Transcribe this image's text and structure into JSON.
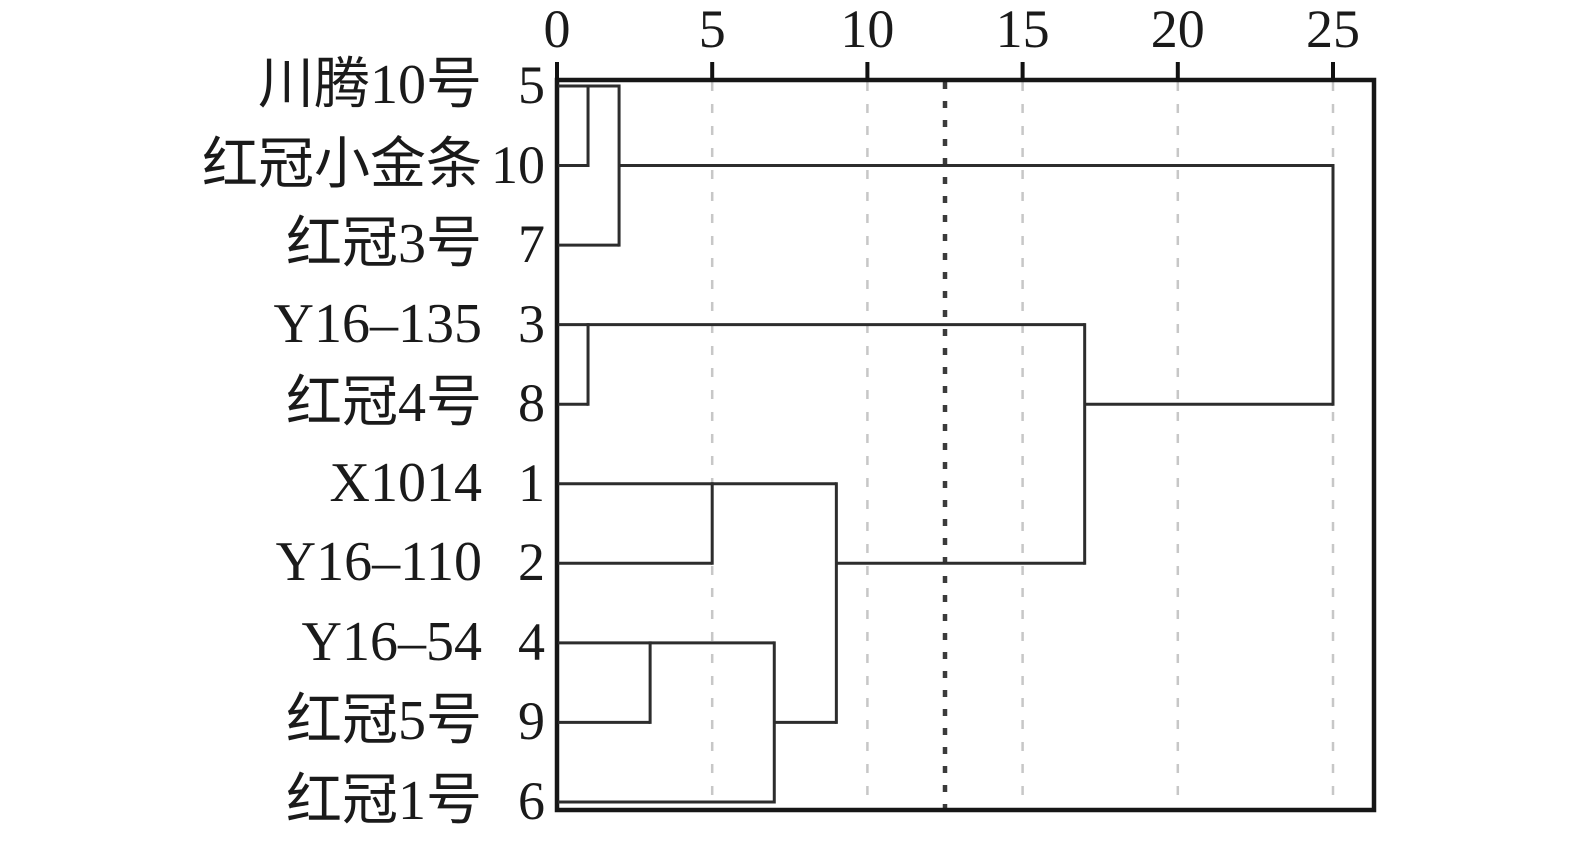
{
  "figure": {
    "kind": "hierarchical-cluster-dendrogram",
    "orientation": "left-to-right",
    "background": "#ffffff"
  },
  "axis": {
    "position": "top",
    "min": 0,
    "max": 25,
    "ticks": [
      "0",
      "5",
      "10",
      "15",
      "20",
      "25"
    ],
    "tick_values": [
      0,
      5,
      10,
      15,
      20,
      25
    ]
  },
  "leaves": [
    {
      "name": "川腾10号",
      "case": "5"
    },
    {
      "name": "红冠小金条",
      "case": "10"
    },
    {
      "name": "红冠3号",
      "case": "7"
    },
    {
      "name": "Y16–135",
      "case": "3"
    },
    {
      "name": "红冠4号",
      "case": "8"
    },
    {
      "name": "X1014",
      "case": "1"
    },
    {
      "name": "Y16–110",
      "case": "2"
    },
    {
      "name": "Y16–54",
      "case": "4"
    },
    {
      "name": "红冠5号",
      "case": "9"
    },
    {
      "name": "红冠1号",
      "case": "6"
    }
  ],
  "colors": {
    "link": "#2d2d2d",
    "border": "#161616",
    "gridline": "#c7c7c7",
    "cut_line": "#3b3b3b",
    "text": "#1a1a1a",
    "tick": "#111111"
  },
  "chart_data": {
    "type": "dendrogram",
    "title": "",
    "xlabel": "",
    "ylabel": "",
    "orientation": "left-to-right",
    "distance_axis": {
      "position": "top",
      "range": [
        0,
        25
      ],
      "ticks": [
        0,
        5,
        10,
        15,
        20,
        25
      ]
    },
    "gridlines": [
      5,
      10,
      15,
      20,
      25
    ],
    "gridline_style": "light-dashed",
    "cut_line": 12.5,
    "cut_line_style": "dark-dashed",
    "leaf_order_top_to_bottom": [
      {
        "label": "川腾10号",
        "case": 5
      },
      {
        "label": "红冠小金条",
        "case": 10
      },
      {
        "label": "红冠3号",
        "case": 7
      },
      {
        "label": "Y16–135",
        "case": 3
      },
      {
        "label": "红冠4号",
        "case": 8
      },
      {
        "label": "X1014",
        "case": 1
      },
      {
        "label": "Y16–110",
        "case": 2
      },
      {
        "label": "Y16–54",
        "case": 4
      },
      {
        "label": "红冠5号",
        "case": 9
      },
      {
        "label": "红冠1号",
        "case": 6
      }
    ],
    "merges": [
      {
        "clusters": [
          "5",
          "10"
        ],
        "distance": 1
      },
      {
        "clusters": [
          "5+10",
          "7"
        ],
        "distance": 2
      },
      {
        "clusters": [
          "3",
          "8"
        ],
        "distance": 1
      },
      {
        "clusters": [
          "4",
          "9"
        ],
        "distance": 3
      },
      {
        "clusters": [
          "1",
          "2"
        ],
        "distance": 5
      },
      {
        "clusters": [
          "4+9",
          "6"
        ],
        "distance": 7
      },
      {
        "clusters": [
          "1+2",
          "4+9+6"
        ],
        "distance": 9
      },
      {
        "clusters": [
          "3+8",
          "1+2+4+9+6"
        ],
        "distance": 17
      },
      {
        "clusters": [
          "5+10+7",
          "3+8+1+2+4+9+6"
        ],
        "distance": 25
      }
    ],
    "segments": {
      "horizontal": [
        {
          "row": 0,
          "d1": 0,
          "d2": 2
        },
        {
          "row": 1,
          "d1": 0,
          "d2": 1
        },
        {
          "row": 1,
          "d1": 2,
          "d2": 25
        },
        {
          "row": 2,
          "d1": 0,
          "d2": 2
        },
        {
          "row": 3,
          "d1": 0,
          "d2": 17
        },
        {
          "row": 4,
          "d1": 0,
          "d2": 1
        },
        {
          "row": 4,
          "d1": 17,
          "d2": 25
        },
        {
          "row": 5,
          "d1": 0,
          "d2": 9
        },
        {
          "row": 6,
          "d1": 0,
          "d2": 5
        },
        {
          "row": 6,
          "d1": 9,
          "d2": 17
        },
        {
          "row": 7,
          "d1": 0,
          "d2": 7
        },
        {
          "row": 8,
          "d1": 0,
          "d2": 3
        },
        {
          "row": 8,
          "d1": 7,
          "d2": 9
        },
        {
          "row": 9,
          "d1": 0,
          "d2": 7
        }
      ],
      "vertical": [
        {
          "d": 1,
          "row1": 0,
          "row2": 1
        },
        {
          "d": 2,
          "row1": 0,
          "row2": 2
        },
        {
          "d": 1,
          "row1": 3,
          "row2": 4
        },
        {
          "d": 5,
          "row1": 5,
          "row2": 6
        },
        {
          "d": 3,
          "row1": 7,
          "row2": 8
        },
        {
          "d": 7,
          "row1": 7,
          "row2": 9
        },
        {
          "d": 9,
          "row1": 5,
          "row2": 8
        },
        {
          "d": 17,
          "row1": 3,
          "row2": 6
        },
        {
          "d": 25,
          "row1": 1,
          "row2": 4
        }
      ]
    }
  }
}
